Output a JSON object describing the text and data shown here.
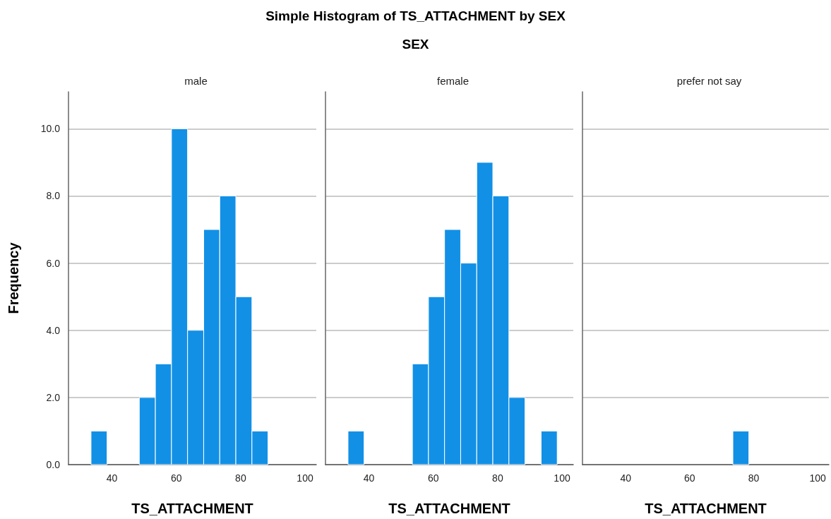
{
  "chart_data": [
    {
      "type": "histogram",
      "title": "male",
      "xlabel": "TS_ATTACHMENT",
      "ylabel": "Frequency",
      "annotations": [
        "Simple Histogram of TS_ATTACHMENT by SEX",
        "SEX"
      ],
      "color": "#1290e6",
      "bins": [
        33.5,
        38.5,
        43.5,
        48.5,
        53.5,
        58.5,
        63.5,
        68.5,
        73.5,
        78.5,
        83.5,
        88.5,
        93.5,
        98.5
      ],
      "values": [
        1,
        0,
        0,
        2,
        3,
        10,
        4,
        7,
        8,
        5,
        1,
        0,
        0
      ],
      "xlim": [
        26.5,
        103.5
      ],
      "xticks": [
        40,
        60,
        80,
        100
      ],
      "ylim": [
        0,
        11.1
      ],
      "yticks": [
        {
          "value": 0,
          "label": "0.0"
        },
        {
          "value": 2,
          "label": "2.0"
        },
        {
          "value": 4,
          "label": "4.0"
        },
        {
          "value": 6,
          "label": "6.0"
        },
        {
          "value": 8,
          "label": "8.0"
        },
        {
          "value": 10,
          "label": "10.0"
        }
      ],
      "grid": "y"
    },
    {
      "type": "histogram",
      "title": "female",
      "xlabel": "TS_ATTACHMENT",
      "color": "#1290e6",
      "bins": [
        33.5,
        38.5,
        43.5,
        48.5,
        53.5,
        58.5,
        63.5,
        68.5,
        73.5,
        78.5,
        83.5,
        88.5,
        93.5,
        98.5
      ],
      "values": [
        1,
        0,
        0,
        0,
        3,
        5,
        7,
        6,
        9,
        8,
        2,
        0,
        1
      ],
      "xlim": [
        26.5,
        103.5
      ],
      "xticks": [
        40,
        60,
        80,
        100
      ],
      "ylim": [
        0,
        11.1
      ],
      "yticks": [
        0,
        2,
        4,
        6,
        8,
        10
      ],
      "grid": "y",
      "tick_labels": "x"
    },
    {
      "type": "histogram",
      "title": "prefer not say",
      "xlabel": "TS_ATTACHMENT",
      "color": "#1290e6",
      "bins": [
        33.5,
        38.5,
        43.5,
        48.5,
        53.5,
        58.5,
        63.5,
        68.5,
        73.5,
        78.5,
        83.5,
        88.5,
        93.5,
        98.5
      ],
      "values": [
        0,
        0,
        0,
        0,
        0,
        0,
        0,
        0,
        1,
        0,
        0,
        0,
        0
      ],
      "xlim": [
        26.5,
        103.5
      ],
      "xticks": [
        40,
        60,
        80,
        100
      ],
      "ylim": [
        0,
        11.1
      ],
      "yticks": [
        0,
        2,
        4,
        6,
        8,
        10
      ],
      "grid": "y",
      "tick_labels": "x"
    }
  ]
}
